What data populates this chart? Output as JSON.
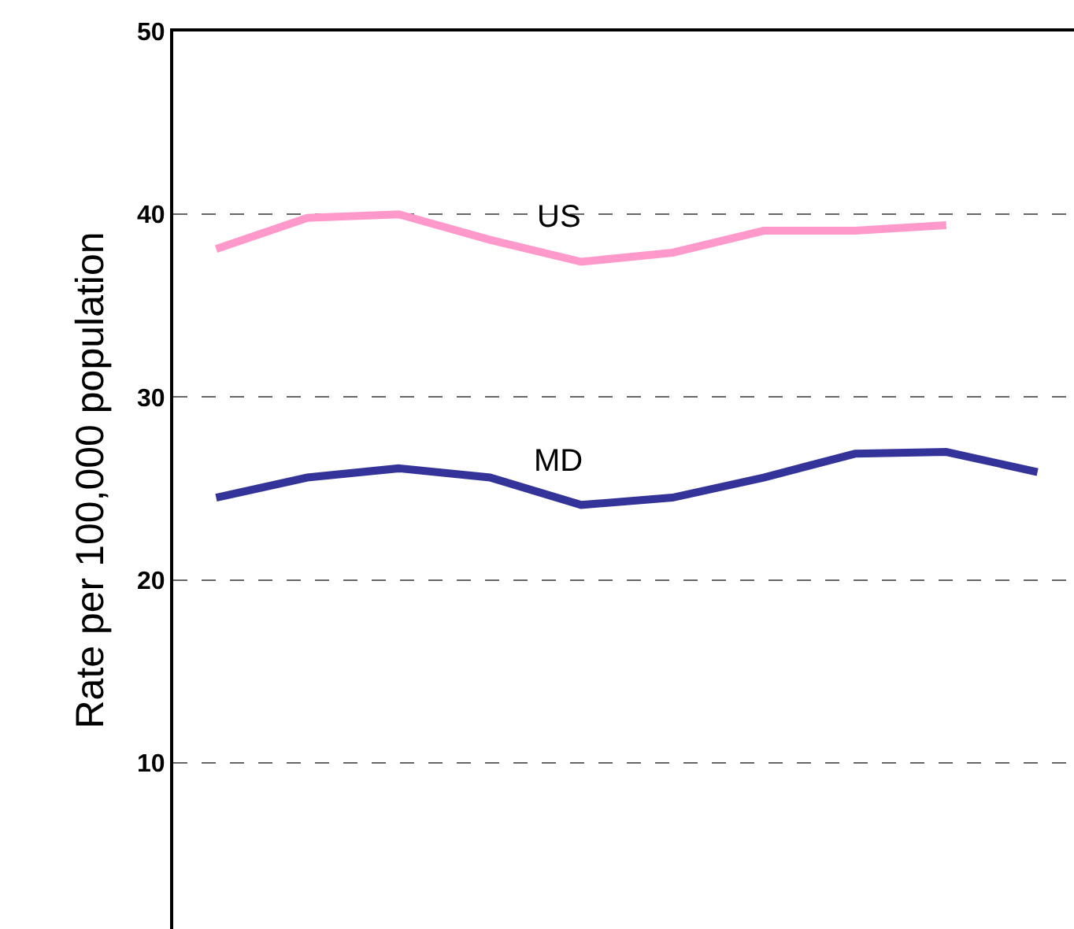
{
  "chart_data": {
    "type": "line",
    "ylabel": "Rate per 100,000 population",
    "categories": [
      null,
      null,
      null,
      null,
      null,
      null,
      null,
      null,
      null,
      null
    ],
    "series": [
      {
        "name": "US",
        "color": "#ff99cc",
        "values": [
          38.1,
          39.8,
          40.0,
          38.6,
          37.4,
          37.9,
          39.1,
          39.1,
          39.4,
          null
        ]
      },
      {
        "name": "MD",
        "color": "#333399",
        "values": [
          24.5,
          25.6,
          26.1,
          25.6,
          24.1,
          24.5,
          25.6,
          26.9,
          27.0,
          25.9
        ]
      }
    ],
    "ylim": [
      0.9,
      50
    ],
    "yticks": [
      10,
      20,
      30,
      40,
      50
    ],
    "grid": "y",
    "legend": false,
    "marker": "none",
    "line_style": "solid"
  }
}
